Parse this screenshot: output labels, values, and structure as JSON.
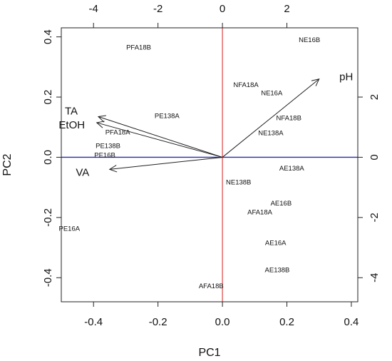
{
  "chart_data": {
    "type": "scatter",
    "title": "",
    "xlabel": "PC1",
    "ylabel": "PC2",
    "xlim": [
      -0.5,
      0.42
    ],
    "ylim": [
      -0.48,
      0.43
    ],
    "x_ticks": [
      -0.4,
      -0.2,
      0.0,
      0.2,
      0.4
    ],
    "x_tick_labels": [
      "-0.4",
      "-0.2",
      "0.0",
      "0.2",
      "0.4"
    ],
    "y_ticks": [
      -0.4,
      -0.2,
      0.0,
      0.2,
      0.4
    ],
    "y_tick_labels": [
      "-0.4",
      "-0.2",
      "0.0",
      "0.2",
      "0.4"
    ],
    "top_ticks": [
      -4,
      -2,
      0,
      2
    ],
    "top_tick_labels": [
      "-4",
      "-2",
      "0",
      "2"
    ],
    "right_ticks": [
      2,
      0,
      -2,
      -4
    ],
    "right_tick_labels": [
      "2",
      "0",
      "-2",
      "-4"
    ],
    "secondary_axis_scale": 0.1,
    "grid": false,
    "zero_lines": {
      "horizontal_color": "#2a2aa8",
      "vertical_color": "#e05050"
    },
    "points": [
      {
        "label": "PFA18B",
        "x": -0.26,
        "y": 0.365
      },
      {
        "label": "NE16B",
        "x": 0.27,
        "y": 0.39
      },
      {
        "label": "NFA18A",
        "x": 0.073,
        "y": 0.24
      },
      {
        "label": "NE16A",
        "x": 0.153,
        "y": 0.213
      },
      {
        "label": "PE138A",
        "x": -0.172,
        "y": 0.137
      },
      {
        "label": "NFA18B",
        "x": 0.206,
        "y": 0.13
      },
      {
        "label": "PFA18A",
        "x": -0.325,
        "y": 0.083
      },
      {
        "label": "NE138A",
        "x": 0.15,
        "y": 0.08
      },
      {
        "label": "PE138B",
        "x": -0.355,
        "y": 0.038
      },
      {
        "label": "PE16B",
        "x": -0.365,
        "y": 0.007
      },
      {
        "label": "AE138A",
        "x": 0.215,
        "y": -0.037
      },
      {
        "label": "NE138B",
        "x": 0.05,
        "y": -0.083
      },
      {
        "label": "AE16B",
        "x": 0.182,
        "y": -0.153
      },
      {
        "label": "AFA18A",
        "x": 0.116,
        "y": -0.183
      },
      {
        "label": "PE16A",
        "x": -0.475,
        "y": -0.237
      },
      {
        "label": "AE16A",
        "x": 0.165,
        "y": -0.285
      },
      {
        "label": "AE138B",
        "x": 0.17,
        "y": -0.375
      },
      {
        "label": "AFA18B",
        "x": -0.035,
        "y": -0.428
      }
    ],
    "loadings": [
      {
        "label": "pH",
        "x": 0.3,
        "y": 0.26
      },
      {
        "label": "TA",
        "x": -0.385,
        "y": 0.135
      },
      {
        "label": "EtOH",
        "x": -0.39,
        "y": 0.115
      },
      {
        "label": "VA",
        "x": -0.35,
        "y": -0.04
      }
    ],
    "arrow_color": "#222222",
    "label_color": "#111111"
  }
}
